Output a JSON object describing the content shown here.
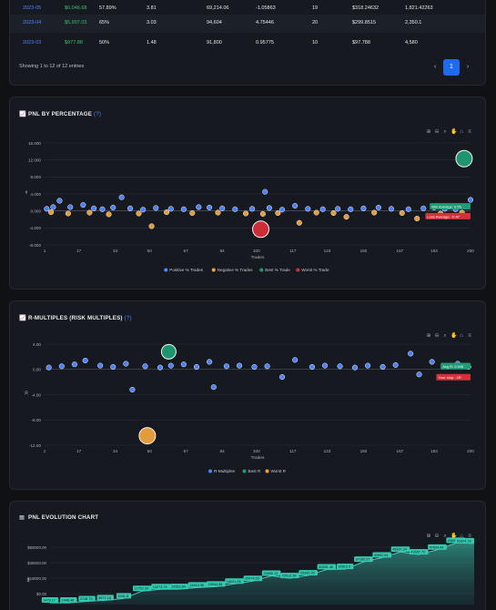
{
  "table": {
    "rows": [
      {
        "date": "2023-05",
        "pnl": "$6,046.68",
        "winrate": "57.89%",
        "c3": "3.81",
        "c4": "69,214.06",
        "c5": "-1.05863",
        "c6": "19",
        "c7": "$318.24632",
        "c8": "1,821.42263"
      },
      {
        "date": "2023-04",
        "pnl": "$5,997.03",
        "winrate": "65%",
        "c3": "3.03",
        "c4": "94,604",
        "c5": "4.75446",
        "c6": "20",
        "c7": "$299.8515",
        "c8": "2,350.1"
      },
      {
        "date": "2023-03",
        "pnl": "$977.88",
        "winrate": "50%",
        "c3": "1.48",
        "c4": "91,800",
        "c5": "0.95775",
        "c6": "10",
        "c7": "$97.788",
        "c8": "4,580"
      }
    ],
    "showing": "Showing 1 to 12 of 12 entries",
    "pager": {
      "prev": "‹",
      "page": "1",
      "next": "›"
    }
  },
  "pnl_percent": {
    "title": "PNL BY PERCENTAGE",
    "qm": "(?)",
    "icon": "chart-line-icon",
    "xlabel": "Trades",
    "ylabel": "#",
    "legend": [
      "Positive % Trades",
      "Negative % Trades",
      "Best % Trade",
      "Worst % Trade"
    ],
    "annotations": {
      "avg_pos": "Win Average: 0.55",
      "avg_neg": "Loss Average: -0.47"
    }
  },
  "rmult": {
    "title": "R-MULTIPLES (RISK MULTIPLES)",
    "qm": "(?)",
    "icon": "chart-line-icon",
    "xlabel": "Trades",
    "ylabel": "R",
    "legend": [
      "R-Multiples",
      "Best R",
      "Worst R"
    ],
    "annotations": {
      "avg": "Avg R: 0.045",
      "stop": "Your stop: -1R"
    }
  },
  "evolution": {
    "title": "PNL EVOLUTION CHART",
    "icon": "table-icon",
    "ylabel": "$"
  },
  "toolbar": [
    "zoom-in-icon",
    "zoom-out-icon",
    "search-icon",
    "pan-hand-icon",
    "home-icon",
    "menu-icon"
  ],
  "colors": {
    "positive": "#4f86ff",
    "negative": "#f0a33c",
    "best": "#1f9c74",
    "worst": "#d6303a",
    "area": "#3fd1b8",
    "panel": "#16191f"
  },
  "chart_data": [
    {
      "type": "scatter",
      "title": "PNL BY PERCENTAGE",
      "xlabel": "Trades",
      "ylabel": "#",
      "xlim": [
        1,
        200
      ],
      "ylim": [
        -8,
        16
      ],
      "xticks": [
        "1",
        "17",
        "34",
        "50",
        "67",
        "84",
        "100",
        "117",
        "133",
        "150",
        "167",
        "183",
        "200"
      ],
      "yticks": [
        "16.000",
        "12.000",
        "8.000",
        "4.000",
        "0.000",
        "-4.000",
        "-8.000"
      ],
      "legend_position": "bottom",
      "series": [
        {
          "name": "Positive % Trades",
          "points": [
            [
              2,
              0.5
            ],
            [
              5,
              0.9
            ],
            [
              8,
              2.4
            ],
            [
              13,
              0.9
            ],
            [
              19,
              1.4
            ],
            [
              24,
              0.6
            ],
            [
              28,
              0.4
            ],
            [
              33,
              0.8
            ],
            [
              37,
              3.2
            ],
            [
              41,
              0.6
            ],
            [
              47,
              0.3
            ],
            [
              53,
              0.7
            ],
            [
              60,
              0.5
            ],
            [
              66,
              0.4
            ],
            [
              73,
              0.9
            ],
            [
              78,
              0.8
            ],
            [
              84,
              0.6
            ],
            [
              90,
              0.4
            ],
            [
              98,
              0.5
            ],
            [
              104,
              4.5
            ],
            [
              106,
              0.7
            ],
            [
              112,
              0.3
            ],
            [
              118,
              1.2
            ],
            [
              124,
              0.5
            ],
            [
              131,
              0.4
            ],
            [
              138,
              0.5
            ],
            [
              144,
              0.4
            ],
            [
              150,
              0.6
            ],
            [
              157,
              0.8
            ],
            [
              163,
              0.5
            ],
            [
              171,
              0.4
            ],
            [
              178,
              0.6
            ],
            [
              183,
              0.8
            ],
            [
              188,
              0.5
            ],
            [
              193,
              0.4
            ],
            [
              200,
              2.6
            ]
          ]
        },
        {
          "name": "Negative % Trades",
          "points": [
            [
              4,
              -0.3
            ],
            [
              12,
              -0.6
            ],
            [
              22,
              -0.4
            ],
            [
              31,
              -0.8
            ],
            [
              45,
              -0.6
            ],
            [
              51,
              -3.6
            ],
            [
              58,
              -0.3
            ],
            [
              70,
              -0.5
            ],
            [
              82,
              -0.4
            ],
            [
              95,
              -0.6
            ],
            [
              103,
              -0.7
            ],
            [
              110,
              -0.5
            ],
            [
              120,
              -2.8
            ],
            [
              128,
              -0.4
            ],
            [
              136,
              -0.5
            ],
            [
              142,
              -1.4
            ],
            [
              155,
              -0.4
            ],
            [
              168,
              -0.5
            ],
            [
              175,
              -1.8
            ],
            [
              186,
              -0.6
            ],
            [
              196,
              -0.4
            ]
          ]
        },
        {
          "name": "Best % Trade",
          "points": [
            [
              197,
              12.3
            ]
          ]
        },
        {
          "name": "Worst % Trade",
          "points": [
            [
              102,
              -4.3
            ]
          ]
        }
      ]
    },
    {
      "type": "scatter",
      "title": "R-MULTIPLES (RISK MULTIPLES)",
      "xlabel": "Trades",
      "ylabel": "R",
      "xlim": [
        1,
        200
      ],
      "ylim": [
        -12,
        4
      ],
      "xticks": [
        "1",
        "17",
        "34",
        "50",
        "67",
        "84",
        "100",
        "117",
        "133",
        "150",
        "167",
        "183",
        "200"
      ],
      "yticks": [
        "4.00",
        "0.00",
        "-4.00",
        "-8.00",
        "-12.00"
      ],
      "legend_position": "bottom",
      "series": [
        {
          "name": "R-Multiples",
          "points": [
            [
              3,
              0.3
            ],
            [
              9,
              0.5
            ],
            [
              15,
              0.8
            ],
            [
              20,
              1.4
            ],
            [
              27,
              0.6
            ],
            [
              33,
              0.4
            ],
            [
              39,
              0.9
            ],
            [
              42,
              -3.2
            ],
            [
              48,
              0.5
            ],
            [
              55,
              0.3
            ],
            [
              60,
              0.6
            ],
            [
              66,
              0.8
            ],
            [
              72,
              0.4
            ],
            [
              78,
              1.2
            ],
            [
              80,
              -2.8
            ],
            [
              86,
              0.5
            ],
            [
              92,
              0.6
            ],
            [
              99,
              0.4
            ],
            [
              105,
              0.5
            ],
            [
              112,
              -1.2
            ],
            [
              118,
              1.5
            ],
            [
              126,
              0.4
            ],
            [
              132,
              0.6
            ],
            [
              139,
              0.5
            ],
            [
              146,
              0.3
            ],
            [
              152,
              0.6
            ],
            [
              159,
              0.4
            ],
            [
              165,
              0.7
            ],
            [
              172,
              2.5
            ],
            [
              176,
              -0.8
            ],
            [
              182,
              1.2
            ],
            [
              188,
              0.5
            ],
            [
              194,
              0.9
            ],
            [
              199,
              0.4
            ]
          ]
        },
        {
          "name": "Best R",
          "points": [
            [
              59,
              2.8
            ]
          ]
        },
        {
          "name": "Worst R",
          "points": [
            [
              49,
              -10.5
            ]
          ]
        }
      ]
    },
    {
      "type": "area",
      "title": "PNL EVOLUTION CHART",
      "ylabel": "$",
      "ylim": [
        0,
        50000
      ],
      "yticks": [
        "$58000.00",
        "$38000.00",
        "$18000.00",
        "$0.00"
      ],
      "data_labels": [
        "1479.17",
        "1448.46",
        "2748.73",
        "3672.18",
        "5281.8",
        "11752.39",
        "13273.79",
        "13383.84",
        "14810.56",
        "15544.58",
        "18021.05",
        "20474.53",
        "24968.13",
        "22913.28",
        "25345.95",
        "30581.46",
        "30819.5",
        "37180.57",
        "40862.61",
        "45837.24",
        "43557.72",
        "47694.44",
        "53688.35",
        "53304.29"
      ],
      "values": [
        1479.17,
        1448.46,
        2748.73,
        3672.18,
        5281.8,
        11752.39,
        13273.79,
        13383.84,
        14810.56,
        15544.58,
        18021.05,
        20474.53,
        24968.13,
        22913.28,
        25345.95,
        30581.46,
        30819.5,
        37180.57,
        40862.61,
        45837.24,
        43557.72,
        47694.44,
        53688.35,
        53304.29
      ]
    }
  ]
}
